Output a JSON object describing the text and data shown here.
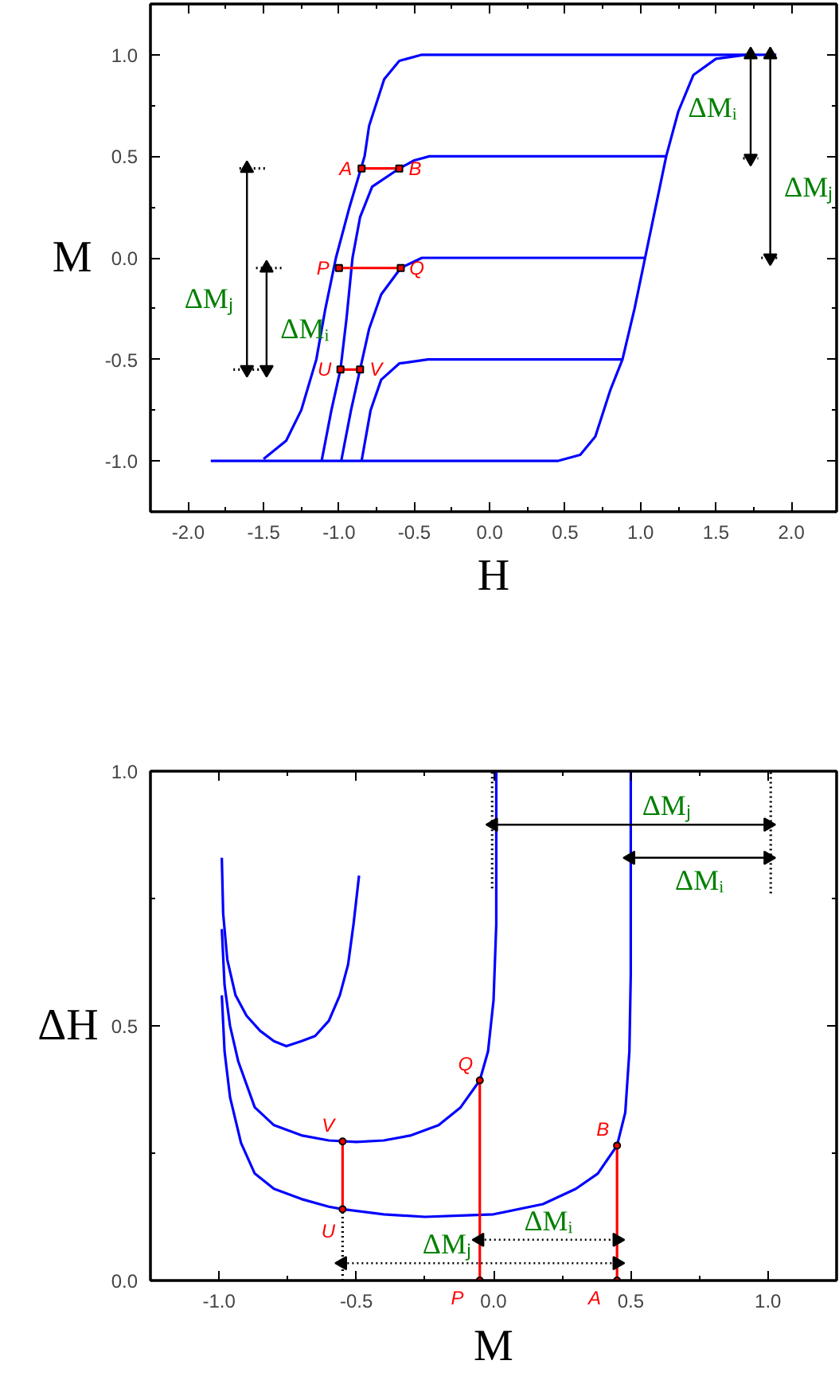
{
  "chart_data": [
    {
      "type": "line",
      "xlabel": "H",
      "ylabel": "M",
      "xlim": [
        -2.25,
        2.3
      ],
      "ylim": [
        -1.25,
        1.25
      ],
      "xticks": [
        {
          "value": -2,
          "label": "-2.0"
        },
        {
          "value": -1.75,
          "label": null
        },
        {
          "value": -1.5,
          "label": "-1.5"
        },
        {
          "value": -1.25,
          "label": null
        },
        {
          "value": -1,
          "label": "-1.0"
        },
        {
          "value": -0.75,
          "label": null
        },
        {
          "value": -0.5,
          "label": "-0.5"
        },
        {
          "value": -0.25,
          "label": null
        },
        {
          "value": 0,
          "label": "0.0"
        },
        {
          "value": 0.25,
          "label": null
        },
        {
          "value": 0.5,
          "label": "0.5"
        },
        {
          "value": 0.75,
          "label": null
        },
        {
          "value": 1,
          "label": "1.0"
        },
        {
          "value": 1.25,
          "label": null
        },
        {
          "value": 1.5,
          "label": "1.5"
        },
        {
          "value": 1.75,
          "label": null
        },
        {
          "value": 2,
          "label": "2.0"
        }
      ],
      "yticks": [
        {
          "value": -1,
          "label": "-1.0"
        },
        {
          "value": -0.75,
          "label": null
        },
        {
          "value": -0.5,
          "label": "-0.5"
        },
        {
          "value": -0.25,
          "label": null
        },
        {
          "value": 0,
          "label": "0.0"
        },
        {
          "value": 0.25,
          "label": null
        },
        {
          "value": 0.5,
          "label": "0.5"
        },
        {
          "value": 0.75,
          "label": null
        },
        {
          "value": 1,
          "label": "1.0"
        }
      ],
      "series": [
        {
          "color": "#0000ff",
          "x": [
            1.9,
            -0.45,
            -0.6,
            -0.7,
            -0.8,
            -0.83,
            -0.93,
            -1.02,
            -1.09,
            -1.15,
            -1.25,
            -1.35,
            -1.5
          ],
          "values": [
            1,
            1,
            0.97,
            0.88,
            0.65,
            0.5,
            0.25,
            0,
            -0.25,
            -0.5,
            -0.75,
            -0.9,
            -0.99
          ]
        },
        {
          "color": "#0000ff",
          "x": [
            -1.85,
            0.45,
            0.6,
            0.7,
            0.8,
            0.88,
            0.96,
            1.03,
            1.1,
            1.17,
            1.25,
            1.35,
            1.5,
            1.7
          ],
          "values": [
            -1,
            -1,
            -0.97,
            -0.88,
            -0.65,
            -0.5,
            -0.25,
            0,
            0.25,
            0.5,
            0.72,
            0.9,
            0.98,
            1
          ]
        },
        {
          "color": "#0000ff",
          "x": [
            -1.115,
            -1.05,
            -0.99,
            -0.95,
            -0.91,
            -0.86,
            -0.78,
            -0.6,
            -0.5,
            -0.4,
            1.17
          ],
          "values": [
            -1,
            -0.75,
            -0.55,
            -0.3,
            0,
            0.2,
            0.35,
            0.44,
            0.48,
            0.5,
            0.5
          ]
        },
        {
          "color": "#0000ff",
          "x": [
            -0.985,
            -0.92,
            -0.86,
            -0.8,
            -0.72,
            -0.59,
            -0.45,
            1.03
          ],
          "values": [
            -1,
            -0.75,
            -0.55,
            -0.35,
            -0.18,
            -0.05,
            0,
            0
          ]
        },
        {
          "color": "#0000ff",
          "x": [
            -0.85,
            -0.79,
            -0.72,
            -0.6,
            -0.41,
            0.88
          ],
          "values": [
            -1,
            -0.75,
            -0.6,
            -0.52,
            -0.5,
            -0.5
          ]
        },
        {
          "color": "#ff0000",
          "marker": "square",
          "x": [
            -0.85,
            -0.6
          ],
          "values": [
            0.44,
            0.44
          ]
        },
        {
          "color": "#ff0000",
          "marker": "square",
          "x": [
            -1.0,
            -0.59
          ],
          "values": [
            -0.05,
            -0.05
          ]
        },
        {
          "color": "#ff0000",
          "marker": "square",
          "x": [
            -0.99,
            -0.86
          ],
          "values": [
            -0.55,
            -0.55
          ]
        },
        {
          "color": "#000000",
          "line_style": "dotted",
          "x": [
            -1.66,
            -1.47
          ],
          "values": [
            0.44,
            0.44
          ]
        },
        {
          "color": "#000000",
          "line_style": "dotted",
          "x": [
            -1.55,
            -1.38
          ],
          "values": [
            -0.05,
            -0.05
          ]
        },
        {
          "color": "#000000",
          "line_style": "dotted",
          "x": [
            -1.7,
            -1.45
          ],
          "values": [
            -0.55,
            -0.55
          ]
        },
        {
          "color": "#000000",
          "line_style": "dotted",
          "x": [
            1.68,
            1.78
          ],
          "values": [
            0.49,
            0.49
          ]
        },
        {
          "color": "#000000",
          "line_style": "dotted",
          "x": [
            1.8,
            1.92
          ],
          "values": [
            0,
            0
          ]
        },
        {
          "color": "#000000",
          "marker": "triangle",
          "x": [
            -1.61,
            -1.61
          ],
          "values": [
            0.44,
            -0.55
          ]
        },
        {
          "color": "#000000",
          "marker": "triangle",
          "x": [
            -1.48,
            -1.48
          ],
          "values": [
            -0.05,
            -0.55
          ]
        },
        {
          "color": "#000000",
          "marker": "triangle",
          "x": [
            1.73,
            1.73
          ],
          "values": [
            1,
            0.49
          ]
        },
        {
          "color": "#000000",
          "marker": "triangle",
          "x": [
            1.86,
            1.86
          ],
          "values": [
            1,
            0
          ]
        }
      ],
      "annotations": [
        {
          "text": "A",
          "x": -0.85,
          "y": 0.44
        },
        {
          "text": "B",
          "x": -0.6,
          "y": 0.44
        },
        {
          "text": "P",
          "x": -1.0,
          "y": -0.05
        },
        {
          "text": "Q",
          "x": -0.59,
          "y": -0.05
        },
        {
          "text": "U",
          "x": -0.99,
          "y": -0.55
        },
        {
          "text": "V",
          "x": -0.86,
          "y": -0.55
        },
        {
          "text": "ΔMⱼ",
          "x": -1.61,
          "y": -0.2
        },
        {
          "text": "ΔMᵢ",
          "x": -1.48,
          "y": -0.35
        },
        {
          "text": "ΔMᵢ",
          "x": 1.73,
          "y": 0.74
        },
        {
          "text": "ΔMⱼ",
          "x": 1.86,
          "y": 0.35
        }
      ]
    },
    {
      "type": "line",
      "xlabel": "M",
      "ylabel": "ΔH",
      "xlim": [
        -1.25,
        1.25
      ],
      "ylim": [
        0,
        1
      ],
      "xticks": [
        {
          "value": -1,
          "label": "-1.0"
        },
        {
          "value": -0.75,
          "label": null
        },
        {
          "value": -0.5,
          "label": "-0.5"
        },
        {
          "value": -0.25,
          "label": null
        },
        {
          "value": 0,
          "label": "0.0"
        },
        {
          "value": 0.25,
          "label": null
        },
        {
          "value": 0.5,
          "label": "0.5"
        },
        {
          "value": 0.75,
          "label": null
        },
        {
          "value": 1,
          "label": "1.0"
        }
      ],
      "yticks": [
        {
          "value": 0,
          "label": "0.0"
        },
        {
          "value": 0.25,
          "label": null
        },
        {
          "value": 0.5,
          "label": "0.5"
        },
        {
          "value": 0.75,
          "label": null
        },
        {
          "value": 1,
          "label": "1.0"
        }
      ],
      "series": [
        {
          "color": "#0000ff",
          "x": [
            -0.99,
            -0.985,
            -0.97,
            -0.94,
            -0.9,
            -0.85,
            -0.8,
            -0.755,
            -0.7,
            -0.65,
            -0.6,
            -0.56,
            -0.53,
            -0.51,
            -0.49
          ],
          "values": [
            0.83,
            0.72,
            0.63,
            0.56,
            0.52,
            0.49,
            0.47,
            0.46,
            0.47,
            0.48,
            0.51,
            0.56,
            0.62,
            0.7,
            0.795
          ]
        },
        {
          "color": "#0000ff",
          "x": [
            -0.99,
            -0.98,
            -0.96,
            -0.93,
            -0.87,
            -0.8,
            -0.7,
            -0.6,
            -0.5,
            -0.4,
            -0.3,
            -0.2,
            -0.12,
            -0.05,
            -0.02,
            0.0,
            0.01,
            0.01
          ],
          "values": [
            0.69,
            0.58,
            0.5,
            0.43,
            0.34,
            0.305,
            0.285,
            0.275,
            0.272,
            0.275,
            0.285,
            0.305,
            0.34,
            0.393,
            0.45,
            0.55,
            0.7,
            1.0
          ]
        },
        {
          "color": "#0000ff",
          "x": [
            -0.99,
            -0.98,
            -0.96,
            -0.92,
            -0.87,
            -0.8,
            -0.7,
            -0.6,
            -0.55,
            -0.4,
            -0.25,
            -0.1,
            0.0,
            0.18,
            0.3,
            0.38,
            0.45,
            0.48,
            0.495,
            0.5,
            0.5
          ],
          "values": [
            0.56,
            0.45,
            0.36,
            0.27,
            0.21,
            0.18,
            0.16,
            0.145,
            0.14,
            0.13,
            0.125,
            0.128,
            0.13,
            0.15,
            0.18,
            0.21,
            0.265,
            0.33,
            0.45,
            0.6,
            1.0
          ]
        },
        {
          "color": "#ff0000",
          "marker": "circle",
          "x": [
            -0.55,
            -0.55
          ],
          "values": [
            0.273,
            0.14
          ]
        },
        {
          "color": "#ff0000",
          "marker": "circle",
          "x": [
            -0.05,
            -0.05
          ],
          "values": [
            0.393,
            0
          ]
        },
        {
          "color": "#ff0000",
          "marker": "circle",
          "x": [
            0.45,
            0.45
          ],
          "values": [
            0.265,
            0
          ]
        },
        {
          "color": "#000000",
          "line_style": "dotted",
          "x": [
            -0.55,
            -0.55
          ],
          "values": [
            0,
            0.14
          ]
        },
        {
          "color": "#000000",
          "line_style": "dotted",
          "x": [
            -0.005,
            -0.005
          ],
          "values": [
            0.77,
            1.0
          ]
        },
        {
          "color": "#000000",
          "line_style": "dotted",
          "x": [
            1.01,
            1.01
          ],
          "values": [
            0.76,
            1.0
          ]
        },
        {
          "color": "#000000",
          "marker": "triangle",
          "line_style": "dotted",
          "x": [
            -0.55,
            0.45
          ],
          "values": [
            0.034,
            0.034
          ]
        },
        {
          "color": "#000000",
          "marker": "triangle",
          "line_style": "dotted",
          "x": [
            -0.05,
            0.45
          ],
          "values": [
            0.08,
            0.08
          ]
        },
        {
          "color": "#000000",
          "marker": "triangle",
          "x": [
            0.0,
            1.0
          ],
          "values": [
            0.895,
            0.895
          ]
        },
        {
          "color": "#000000",
          "marker": "triangle",
          "x": [
            0.5,
            1.0
          ],
          "values": [
            0.83,
            0.83
          ]
        }
      ],
      "annotations": [
        {
          "text": "V",
          "x": -0.55,
          "y": 0.273
        },
        {
          "text": "U",
          "x": -0.55,
          "y": 0.14
        },
        {
          "text": "Q",
          "x": -0.05,
          "y": 0.393
        },
        {
          "text": "P",
          "x": -0.05,
          "y": 0
        },
        {
          "text": "B",
          "x": 0.45,
          "y": 0.265
        },
        {
          "text": "A",
          "x": 0.45,
          "y": 0
        },
        {
          "text": "ΔMⱼ",
          "x": -0.17,
          "y": 0.034
        },
        {
          "text": "ΔMᵢ",
          "x": 0.2,
          "y": 0.08
        },
        {
          "text": "ΔMⱼ",
          "x": 0.63,
          "y": 0.895
        },
        {
          "text": "ΔMᵢ",
          "x": 0.75,
          "y": 0.83
        }
      ]
    }
  ]
}
